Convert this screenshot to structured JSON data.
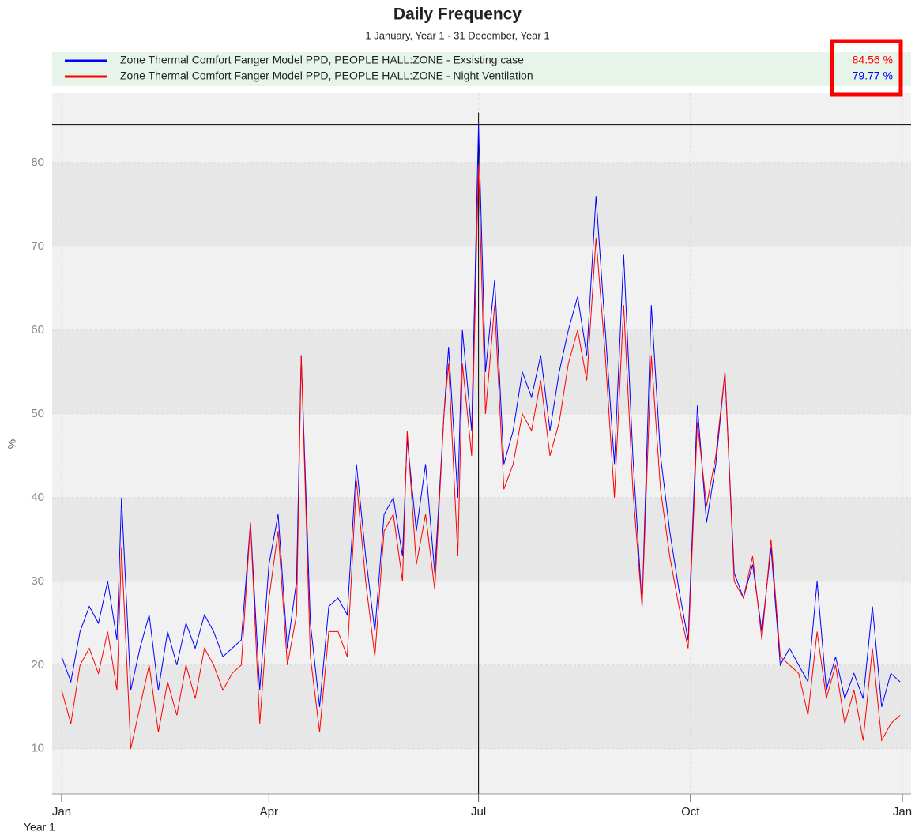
{
  "chart_data": {
    "type": "line",
    "title": "Daily Frequency",
    "subtitle": "1 January, Year 1 - 31 December, Year 1",
    "y_label": "%",
    "x_label": "Year 1",
    "x": [
      0,
      4,
      8,
      12,
      16,
      20,
      24,
      26,
      30,
      34,
      38,
      42,
      46,
      50,
      54,
      58,
      62,
      66,
      70,
      74,
      78,
      82,
      86,
      90,
      94,
      98,
      102,
      104,
      108,
      112,
      116,
      120,
      124,
      128,
      132,
      136,
      140,
      144,
      148,
      150,
      154,
      158,
      162,
      166,
      168,
      172,
      174,
      178,
      181,
      184,
      188,
      192,
      196,
      200,
      204,
      208,
      212,
      216,
      220,
      224,
      228,
      232,
      236,
      240,
      244,
      248,
      252,
      256,
      260,
      264,
      268,
      272,
      276,
      280,
      284,
      288,
      292,
      296,
      300,
      304,
      308,
      312,
      316,
      320,
      324,
      328,
      332,
      336,
      340,
      344,
      348,
      352,
      356,
      360,
      364
    ],
    "series": [
      {
        "name": "Zone Thermal Comfort Fanger Model PPD, PEOPLE HALL:ZONE - Exsisting case",
        "color": "#0000ff",
        "max_label": "84.56 %",
        "max_label_color": "#ff0000",
        "values": [
          21,
          18,
          24,
          27,
          25,
          30,
          23,
          40,
          17,
          22,
          26,
          17,
          24,
          20,
          25,
          22,
          26,
          24,
          21,
          22,
          23,
          37,
          17,
          32,
          38,
          22,
          30,
          57,
          25,
          15,
          27,
          28,
          26,
          44,
          33,
          24,
          38,
          40,
          33,
          47,
          36,
          44,
          31,
          50,
          58,
          40,
          60,
          48,
          84.56,
          55,
          66,
          44,
          48,
          55,
          52,
          57,
          48,
          55,
          60,
          64,
          57,
          76,
          60,
          44,
          69,
          45,
          27,
          63,
          45,
          36,
          29,
          23,
          51,
          37,
          44,
          55,
          31,
          28,
          32,
          24,
          34,
          20,
          22,
          20,
          18,
          30,
          17,
          21,
          16,
          19,
          16,
          27,
          15,
          19,
          18
        ]
      },
      {
        "name": "Zone Thermal Comfort Fanger Model PPD, PEOPLE HALL:ZONE - Night Ventilation",
        "color": "#ff0000",
        "max_label": "79.77 %",
        "max_label_color": "#0000ff",
        "values": [
          17,
          13,
          20,
          22,
          19,
          24,
          17,
          34,
          10,
          15,
          20,
          12,
          18,
          14,
          20,
          16,
          22,
          20,
          17,
          19,
          20,
          37,
          13,
          28,
          36,
          20,
          26,
          57,
          21,
          12,
          24,
          24,
          21,
          42,
          30,
          21,
          36,
          38,
          30,
          48,
          32,
          38,
          29,
          50,
          56,
          33,
          56,
          45,
          79.77,
          50,
          63,
          41,
          44,
          50,
          48,
          54,
          45,
          49,
          56,
          60,
          54,
          71,
          57,
          40,
          63,
          41,
          27,
          57,
          41,
          33,
          27,
          22,
          49,
          39,
          45,
          55,
          30,
          28,
          33,
          23,
          35,
          21,
          20,
          19,
          14,
          24,
          16,
          20,
          13,
          17,
          11,
          22,
          11,
          13,
          14
        ]
      }
    ],
    "xlim": [
      0,
      365
    ],
    "xticks": [
      {
        "value": 0,
        "label": "Jan"
      },
      {
        "value": 90,
        "label": "Apr"
      },
      {
        "value": 181,
        "label": "Jul"
      },
      {
        "value": 273,
        "label": "Oct"
      },
      {
        "value": 365,
        "label": "Jan"
      }
    ],
    "ylim": [
      4.6,
      88.3
    ],
    "yticks": [
      10,
      20,
      30,
      40,
      50,
      60,
      70,
      80
    ],
    "crosshair": {
      "x": 181,
      "y": 84.56
    },
    "grid": true
  }
}
